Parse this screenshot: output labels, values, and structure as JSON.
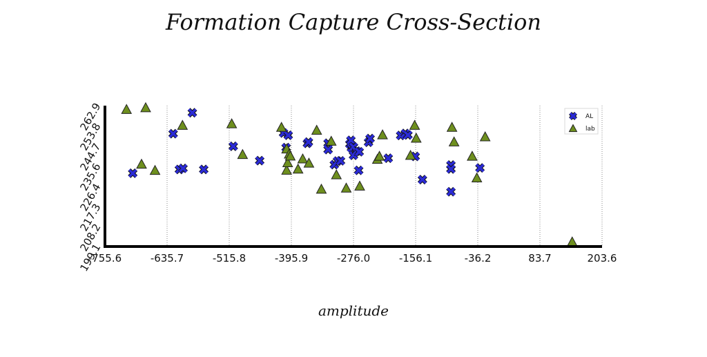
{
  "chart_data": {
    "type": "scatter",
    "title": "Formation Capture Cross-Section",
    "xlabel": "amplitude",
    "ylabel": "",
    "xlim": [
      -755.6,
      203.6
    ],
    "ylim": [
      199.1,
      262.9
    ],
    "x_ticks": [
      "-755.6",
      "-635.7",
      "-515.8",
      "-395.9",
      "-276.0",
      "-156.1",
      "-36.2",
      "83.7",
      "203.6"
    ],
    "y_ticks": [
      "199.1",
      "208.2",
      "217.3",
      "226.4",
      "235.6",
      "244.7",
      "253.8",
      "262.9"
    ],
    "grid": "vertical dotted lines",
    "legend_position": "top-right",
    "series": [
      {
        "name": "AL",
        "marker": "x",
        "color": "#2b2bd6",
        "points": [
          [
            -702,
            232.3
          ],
          [
            -624,
            250.2
          ],
          [
            -612,
            234.0
          ],
          [
            -605,
            234.5
          ],
          [
            -587,
            259.7
          ],
          [
            -565,
            234.0
          ],
          [
            -508,
            244.5
          ],
          [
            -457,
            238.0
          ],
          [
            -411,
            250.5
          ],
          [
            -406,
            243.9
          ],
          [
            -402,
            249.5
          ],
          [
            -365,
            245.8
          ],
          [
            -363,
            246.4
          ],
          [
            -325,
            245.9
          ],
          [
            -325,
            243.0
          ],
          [
            -313,
            236.2
          ],
          [
            -307,
            237.8
          ],
          [
            -301,
            237.9
          ],
          [
            -283,
            245.5
          ],
          [
            -281,
            247.2
          ],
          [
            -280,
            243.8
          ],
          [
            -276,
            244.2
          ],
          [
            -276,
            240.4
          ],
          [
            -270,
            242.3
          ],
          [
            -266,
            233.6
          ],
          [
            -265,
            242.0
          ],
          [
            -247,
            246.3
          ],
          [
            -244,
            248.0
          ],
          [
            -209,
            239.1
          ],
          [
            -185,
            249.4
          ],
          [
            -176,
            250.3
          ],
          [
            -171,
            249.6
          ],
          [
            -157,
            239.9
          ],
          [
            -143,
            229.4
          ],
          [
            -88,
            236.0
          ],
          [
            -88,
            234.2
          ],
          [
            -88,
            223.9
          ],
          [
            -32,
            234.7
          ]
        ]
      },
      {
        "name": "lab",
        "marker": "triangle",
        "color": "#6e8f1e",
        "points": [
          [
            -714,
            261.2
          ],
          [
            -685,
            236.4
          ],
          [
            -677,
            262.0
          ],
          [
            -659,
            233.6
          ],
          [
            -606,
            254.0
          ],
          [
            -511,
            254.7
          ],
          [
            -490,
            240.8
          ],
          [
            -415,
            253.1
          ],
          [
            -405,
            233.7
          ],
          [
            -405,
            243.3
          ],
          [
            -403,
            237.1
          ],
          [
            -400,
            241.0
          ],
          [
            -398,
            240.1
          ],
          [
            -383,
            234.2
          ],
          [
            -374,
            238.8
          ],
          [
            -362,
            236.9
          ],
          [
            -347,
            251.8
          ],
          [
            -338,
            225.1
          ],
          [
            -319,
            246.8
          ],
          [
            -309,
            231.6
          ],
          [
            -290,
            225.6
          ],
          [
            -264,
            226.5
          ],
          [
            -230,
            238.6
          ],
          [
            -226,
            240.0
          ],
          [
            -220,
            249.7
          ],
          [
            -166,
            240.4
          ],
          [
            -158,
            254.0
          ],
          [
            -155,
            248.2
          ],
          [
            -86,
            253.1
          ],
          [
            -82,
            246.5
          ],
          [
            -47,
            240.0
          ],
          [
            -38,
            230.2
          ],
          [
            -22,
            248.8
          ],
          [
            146,
            201.2
          ]
        ]
      }
    ]
  }
}
